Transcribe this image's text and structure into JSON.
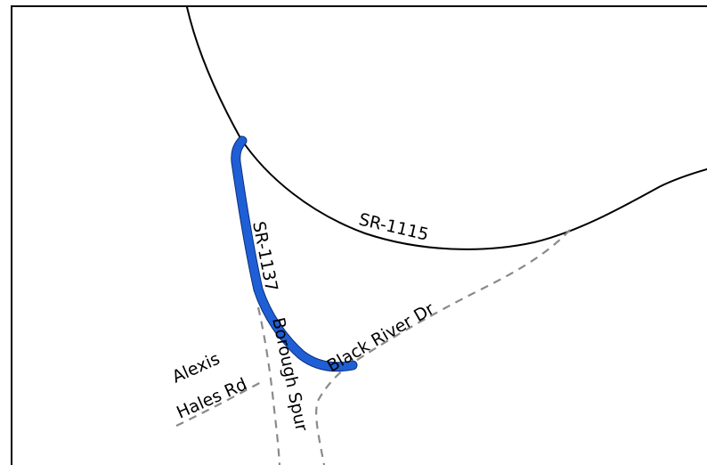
{
  "map": {
    "roads": [
      {
        "id": "sr-1115",
        "label": "SR-1115",
        "style": "major"
      },
      {
        "id": "sr-1137",
        "label": "SR-1137",
        "style": "major"
      },
      {
        "id": "black-river-dr",
        "label": "Black River Dr",
        "style": "minor"
      },
      {
        "id": "alexis-hales-rd",
        "label_line1": "Alexis",
        "label_line2": "Hales Rd",
        "style": "minor"
      },
      {
        "id": "borough-spur",
        "label": "Borough Spur",
        "style": "minor"
      }
    ],
    "colors": {
      "route": "#1f5fd6",
      "major_road": "#000000",
      "minor_road": "#8a8a8a",
      "background": "#ffffff"
    }
  }
}
